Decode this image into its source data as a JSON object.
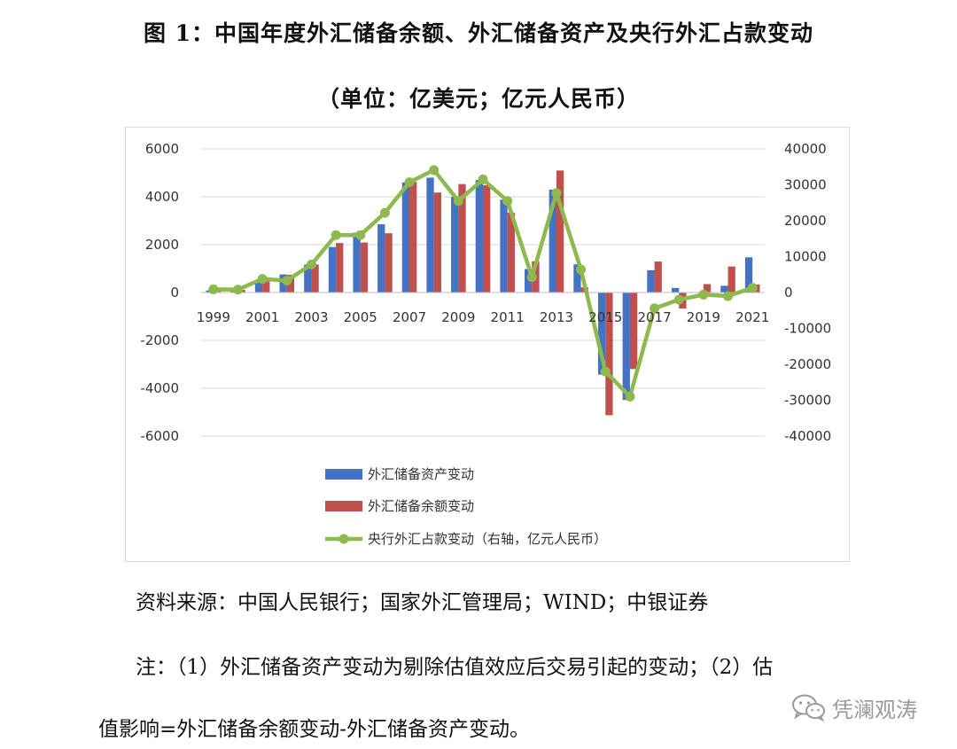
{
  "title_line1": "图 1：中国年度外汇储备余额、外汇储备资产及央行外汇占款变动",
  "title_line2": "（单位：亿美元；亿元人民币）",
  "source": "资料来源：中国人民银行；国家外汇管理局；WIND；中银证券",
  "note_line1": "注：（1）外汇储备资产变动为剔除估值效应后交易引起的变动；（2）估",
  "note_line2": "值影响=外汇储备余额变动-外汇储备资产变动。",
  "watermark": {
    "icon": "wechat-icon",
    "text": "凭澜观涛"
  },
  "chart_data": {
    "type": "bar",
    "categories": [
      "1999",
      "2000",
      "2001",
      "2002",
      "2003",
      "2004",
      "2005",
      "2006",
      "2007",
      "2008",
      "2009",
      "2010",
      "2011",
      "2012",
      "2013",
      "2014",
      "2015",
      "2016",
      "2017",
      "2018",
      "2019",
      "2020",
      "2021"
    ],
    "x_tick_labels": [
      "1999",
      "2001",
      "2003",
      "2005",
      "2007",
      "2009",
      "2011",
      "2013",
      "2015",
      "2017",
      "2019",
      "2021"
    ],
    "left_axis": {
      "ylim": [
        -6000,
        6000
      ],
      "ticks": [
        -6000,
        -4000,
        -2000,
        0,
        2000,
        4000,
        6000
      ]
    },
    "right_axis": {
      "ylim": [
        -40000,
        40000
      ],
      "ticks": [
        -40000,
        -30000,
        -20000,
        -10000,
        0,
        10000,
        20000,
        30000,
        40000
      ]
    },
    "series": [
      {
        "name": "外汇储备资产变动",
        "kind": "bar",
        "axis": "left",
        "color": "#4472C4",
        "values": [
          85,
          105,
          470,
          755,
          1170,
          1900,
          2500,
          2850,
          4600,
          4800,
          4000,
          4700,
          3880,
          980,
          4300,
          1180,
          -3430,
          -4490,
          930,
          190,
          -20,
          280,
          1470
        ]
      },
      {
        "name": "外汇储备余额变动",
        "kind": "bar",
        "axis": "left",
        "color": "#C0504D",
        "values": [
          97,
          109,
          466,
          742,
          1168,
          2067,
          2089,
          2475,
          4619,
          4178,
          4531,
          4481,
          3338,
          1304,
          5097,
          217,
          -5127,
          -3198,
          1294,
          -672,
          352,
          1086,
          336
        ]
      },
      {
        "name": "央行外汇占款变动（右轴，亿元人民币）",
        "kind": "line",
        "axis": "right",
        "color": "#8DB94E",
        "values": [
          900,
          800,
          3800,
          3300,
          7800,
          16000,
          16000,
          22200,
          30700,
          34100,
          25500,
          31500,
          25500,
          4300,
          27700,
          6400,
          -22000,
          -29000,
          -4400,
          -2000,
          -600,
          -1000,
          1300
        ]
      }
    ],
    "legend_placement": "bottom-center"
  }
}
